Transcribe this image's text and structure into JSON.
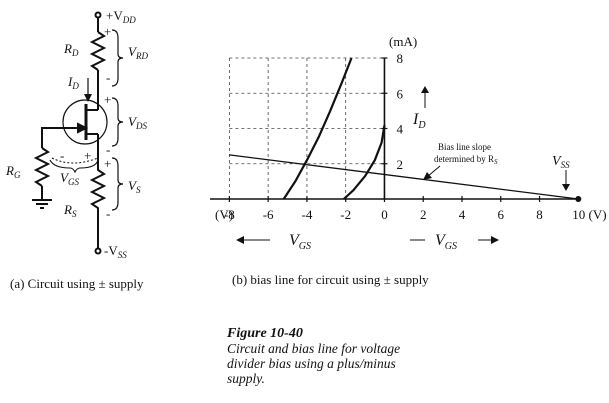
{
  "circuit": {
    "labels": {
      "vdd": "+V",
      "vdd_sub": "DD",
      "rd": "R",
      "rd_sub": "D",
      "vrd": "V",
      "vrd_sub": "RD",
      "id": "I",
      "id_sub": "D",
      "vds": "V",
      "vds_sub": "DS",
      "rg": "R",
      "rg_sub": "G",
      "vgs": "V",
      "vgs_sub": "GS",
      "vs": "V",
      "vs_sub": "S",
      "rs": "R",
      "rs_sub": "S",
      "vss": "-V",
      "vss_sub": "SS",
      "plus": "+",
      "minus": "-"
    },
    "caption": "(a)  Circuit using  ±  supply"
  },
  "chart_data": {
    "type": "line",
    "xlim": [
      -9,
      10.5
    ],
    "ylim": [
      0,
      8
    ],
    "x_unit": "(V)",
    "y_unit": "(mA)",
    "x_ticks": [
      -8,
      -6,
      -4,
      -2,
      0,
      2,
      4,
      6,
      8,
      10
    ],
    "x_tick_labels": [
      "-8",
      "-6",
      "-4",
      "-2",
      "0",
      "2",
      "4",
      "6",
      "8",
      "10 (V)"
    ],
    "y_ticks": [
      2,
      4,
      6,
      8
    ],
    "y_tick_labels": [
      "2",
      "4",
      "6",
      "8"
    ],
    "y_axis_label": "I",
    "y_axis_label_sub": "D",
    "x_axis_label": "V",
    "x_axis_label_sub": "GS",
    "series": [
      {
        "values": [
          [
            -5.2,
            0
          ],
          [
            -4.6,
            1.0
          ],
          [
            -4.0,
            2.2
          ],
          [
            -3.4,
            3.5
          ],
          [
            -2.8,
            5.0
          ],
          [
            -2.2,
            6.6
          ],
          [
            -1.7,
            8.0
          ]
        ]
      },
      {
        "values": [
          [
            -2.1,
            0
          ],
          [
            -1.6,
            0.5
          ],
          [
            -1.0,
            1.3
          ],
          [
            -0.5,
            2.2
          ],
          [
            -0.15,
            3.2
          ],
          [
            0,
            4.2
          ]
        ]
      },
      {
        "values": [
          [
            -8,
            2.5
          ],
          [
            10,
            0
          ]
        ]
      }
    ],
    "annotations": {
      "bias_line_1": "Bias line slope",
      "bias_line_2": "determined by R",
      "bias_line_sub": "S",
      "vss": "V",
      "vss_sub": "SS"
    },
    "caption": "(b)   bias line for circuit using  ±  supply"
  },
  "figure_caption": {
    "title": "Figure   10-40",
    "lines": [
      "Circuit and bias line for voltage",
      "divider bias using a plus/minus",
      "supply."
    ]
  }
}
